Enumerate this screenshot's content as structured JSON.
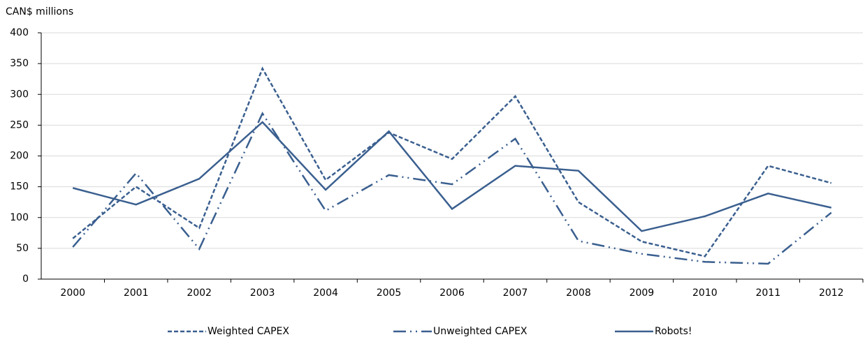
{
  "chart_data": {
    "type": "line",
    "y_label": "CAN$ millions",
    "categories": [
      "2000",
      "2001",
      "2002",
      "2003",
      "2004",
      "2005",
      "2006",
      "2007",
      "2008",
      "2009",
      "2010",
      "2011",
      "2012"
    ],
    "ylim": [
      0,
      400
    ],
    "yticks": [
      0,
      50,
      100,
      150,
      200,
      250,
      300,
      350,
      400
    ],
    "grid": true,
    "legend": "bottom",
    "series": [
      {
        "name": "Weighted CAPEX",
        "color": "#3a5f8f",
        "dash": "dashed",
        "values": [
          66,
          150,
          83,
          342,
          161,
          238,
          195,
          297,
          125,
          61,
          37,
          184,
          156
        ]
      },
      {
        "name": "Unweighted CAPEX",
        "color": "#3a5f8f",
        "dash": "dashdot",
        "values": [
          52,
          172,
          49,
          269,
          111,
          169,
          154,
          228,
          62,
          41,
          28,
          25,
          108
        ]
      },
      {
        "name": "Robots!",
        "color": "#3a5f8f",
        "dash": "solid",
        "values": [
          148,
          121,
          163,
          255,
          145,
          240,
          114,
          184,
          176,
          78,
          102,
          139,
          116
        ]
      }
    ]
  }
}
